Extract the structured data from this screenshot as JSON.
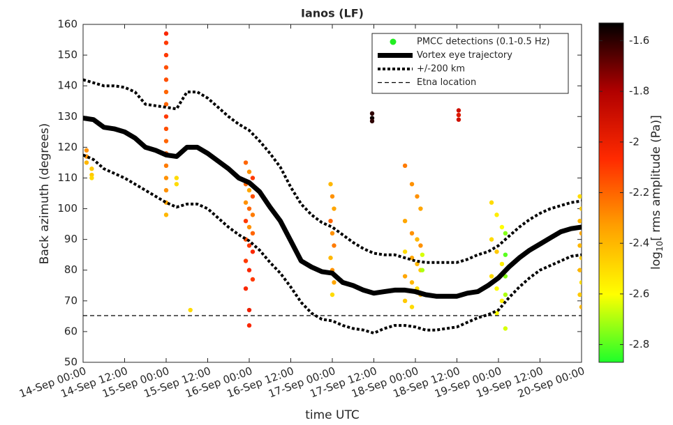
{
  "chart_data": {
    "type": "scatter-line",
    "title": "Ianos (LF)",
    "xlabel": "time UTC",
    "ylabel": "Back azimuth (degrees)",
    "colorbar_label": {
      "base": "log",
      "sub": "10",
      "rest": "[ rms amplitude (Pa)]"
    },
    "xlim": [
      "14-Sep 00:00",
      "20-Sep 00:00"
    ],
    "xticks": [
      "14-Sep 00:00",
      "14-Sep 12:00",
      "15-Sep 00:00",
      "15-Sep 12:00",
      "16-Sep 00:00",
      "16-Sep 12:00",
      "17-Sep 00:00",
      "17-Sep 12:00",
      "18-Sep 00:00",
      "18-Sep 12:00",
      "19-Sep 00:00",
      "19-Sep 12:00",
      "20-Sep 00:00"
    ],
    "ylim": [
      50,
      160
    ],
    "yticks": [
      50,
      60,
      70,
      80,
      90,
      100,
      110,
      120,
      130,
      140,
      150,
      160
    ],
    "clim": [
      -2.87,
      -1.53
    ],
    "cticks": [
      -2.8,
      -2.6,
      -2.4,
      -2.2,
      -2,
      -1.8,
      -1.6
    ],
    "colormap": [
      "#1eff2a",
      "#ffff00",
      "#ffa000",
      "#ff2a00",
      "#b00000",
      "#000000"
    ],
    "legend": "upper right",
    "x": [
      "14-Sep 00:00",
      "14-Sep 03:00",
      "14-Sep 06:00",
      "14-Sep 09:00",
      "14-Sep 12:00",
      "14-Sep 15:00",
      "14-Sep 18:00",
      "14-Sep 21:00",
      "15-Sep 00:00",
      "15-Sep 03:00",
      "15-Sep 06:00",
      "15-Sep 09:00",
      "15-Sep 12:00",
      "15-Sep 15:00",
      "15-Sep 18:00",
      "15-Sep 21:00",
      "16-Sep 00:00",
      "16-Sep 03:00",
      "16-Sep 06:00",
      "16-Sep 09:00",
      "16-Sep 12:00",
      "16-Sep 15:00",
      "16-Sep 18:00",
      "16-Sep 21:00",
      "17-Sep 00:00",
      "17-Sep 03:00",
      "17-Sep 06:00",
      "17-Sep 09:00",
      "17-Sep 12:00",
      "17-Sep 15:00",
      "17-Sep 18:00",
      "17-Sep 21:00",
      "18-Sep 00:00",
      "18-Sep 03:00",
      "18-Sep 06:00",
      "18-Sep 09:00",
      "18-Sep 12:00",
      "18-Sep 15:00",
      "18-Sep 18:00",
      "18-Sep 21:00",
      "19-Sep 00:00",
      "19-Sep 03:00",
      "19-Sep 06:00",
      "19-Sep 09:00",
      "19-Sep 12:00",
      "19-Sep 15:00",
      "19-Sep 18:00",
      "19-Sep 21:00",
      "20-Sep 00:00"
    ],
    "series": [
      {
        "name": "PMCC detections (0.1-0.5 Hz)",
        "kind": "scatter",
        "color": "#22ee22",
        "x": [
          "14-Sep 01:00",
          "14-Sep 01:00",
          "14-Sep 01:00",
          "14-Sep 02:30",
          "14-Sep 02:30",
          "14-Sep 02:30",
          "15-Sep 00:00",
          "15-Sep 00:00",
          "15-Sep 00:00",
          "15-Sep 00:00",
          "15-Sep 00:00",
          "15-Sep 00:00",
          "15-Sep 00:00",
          "15-Sep 00:00",
          "15-Sep 00:00",
          "15-Sep 00:00",
          "15-Sep 00:00",
          "15-Sep 00:00",
          "15-Sep 00:00",
          "15-Sep 00:00",
          "15-Sep 00:00",
          "15-Sep 00:00",
          "15-Sep 03:00",
          "15-Sep 03:00",
          "15-Sep 07:00",
          "15-Sep 23:00",
          "16-Sep 00:00",
          "16-Sep 01:00",
          "15-Sep 23:00",
          "16-Sep 00:00",
          "16-Sep 01:00",
          "15-Sep 23:00",
          "16-Sep 00:00",
          "16-Sep 01:00",
          "15-Sep 23:00",
          "16-Sep 00:00",
          "16-Sep 01:00",
          "15-Sep 23:00",
          "16-Sep 00:00",
          "16-Sep 01:00",
          "15-Sep 23:00",
          "16-Sep 00:00",
          "16-Sep 01:00",
          "15-Sep 23:00",
          "16-Sep 00:00",
          "16-Sep 00:00",
          "16-Sep 23:30",
          "17-Sep 00:00",
          "17-Sep 00:30",
          "16-Sep 23:30",
          "17-Sep 00:00",
          "17-Sep 00:30",
          "16-Sep 23:30",
          "17-Sep 00:00",
          "17-Sep 00:30",
          "17-Sep 00:00",
          "17-Sep 11:30",
          "17-Sep 11:30",
          "17-Sep 11:30",
          "17-Sep 21:00",
          "17-Sep 23:00",
          "18-Sep 00:30",
          "18-Sep 01:30",
          "17-Sep 21:00",
          "17-Sep 23:00",
          "18-Sep 00:30",
          "18-Sep 01:30",
          "17-Sep 21:00",
          "17-Sep 23:00",
          "18-Sep 00:30",
          "18-Sep 01:30",
          "17-Sep 21:00",
          "17-Sep 23:00",
          "18-Sep 00:30",
          "18-Sep 01:30",
          "17-Sep 21:00",
          "17-Sep 23:00",
          "18-Sep 02:00",
          "18-Sep 02:00",
          "18-Sep 12:30",
          "18-Sep 12:30",
          "18-Sep 12:30",
          "18-Sep 22:00",
          "18-Sep 23:30",
          "19-Sep 01:00",
          "18-Sep 22:00",
          "18-Sep 23:30",
          "19-Sep 01:00",
          "18-Sep 22:00",
          "18-Sep 23:30",
          "19-Sep 01:00",
          "18-Sep 23:30",
          "19-Sep 02:00",
          "19-Sep 02:00",
          "19-Sep 02:00",
          "19-Sep 02:00",
          "19-Sep 02:00",
          "19-Sep 23:30",
          "20-Sep 00:00",
          "19-Sep 23:30",
          "20-Sep 00:00",
          "19-Sep 23:30",
          "20-Sep 00:00",
          "19-Sep 23:30",
          "20-Sep 00:00",
          "19-Sep 23:30",
          "20-Sep 00:00"
        ],
        "values": [
          119,
          117,
          115,
          113,
          111,
          110,
          157,
          154,
          150,
          146,
          142,
          138,
          134,
          130,
          126,
          122,
          118,
          114,
          110,
          106,
          102,
          98,
          110,
          108,
          67,
          115,
          112,
          110,
          108,
          106,
          104,
          102,
          100,
          98,
          96,
          94,
          92,
          90,
          88,
          86,
          83,
          80,
          77,
          74,
          67,
          62,
          108,
          104,
          100,
          96,
          92,
          88,
          84,
          80,
          76,
          72,
          131,
          129.5,
          128.5,
          114,
          108,
          104,
          100,
          96,
          92,
          90,
          88,
          86,
          84,
          82,
          80,
          78,
          76,
          74,
          72,
          70,
          68,
          85,
          80,
          132,
          130.5,
          129,
          102,
          98,
          94,
          90,
          86,
          82,
          78,
          74,
          70,
          66,
          92,
          85,
          78,
          72,
          61,
          104,
          100,
          96,
          92,
          88,
          84,
          80,
          76,
          72,
          68
        ],
        "c": [
          -2.3,
          -2.3,
          -2.4,
          -2.45,
          -2.45,
          -2.5,
          -2.05,
          -2.1,
          -2.1,
          -2.15,
          -2.15,
          -2.2,
          -2.2,
          -2.1,
          -2.15,
          -2.2,
          -2.2,
          -2.25,
          -2.3,
          -2.3,
          -2.35,
          -2.4,
          -2.5,
          -2.5,
          -2.5,
          -2.2,
          -2.3,
          -2.1,
          -2.2,
          -2.35,
          -2.15,
          -2.3,
          -2.2,
          -2.25,
          -2.1,
          -2.3,
          -2.2,
          -2.15,
          -2.1,
          -2.05,
          -2.1,
          -2.05,
          -2.1,
          -2.05,
          -2.0,
          -2.05,
          -2.4,
          -2.3,
          -2.35,
          -2.2,
          -2.3,
          -2.25,
          -2.4,
          -2.3,
          -2.35,
          -2.5,
          -1.6,
          -1.55,
          -1.6,
          -2.25,
          -2.3,
          -2.3,
          -2.35,
          -2.35,
          -2.3,
          -2.4,
          -2.3,
          -2.5,
          -2.35,
          -2.4,
          -2.45,
          -2.35,
          -2.4,
          -2.5,
          -2.4,
          -2.45,
          -2.5,
          -2.65,
          -2.7,
          -1.9,
          -1.95,
          -1.9,
          -2.5,
          -2.55,
          -2.6,
          -2.5,
          -2.45,
          -2.55,
          -2.5,
          -2.6,
          -2.55,
          -2.6,
          -2.75,
          -2.8,
          -2.75,
          -2.7,
          -2.65,
          -2.5,
          -2.45,
          -2.4,
          -2.35,
          -2.4,
          -2.45,
          -2.4,
          -2.5,
          -2.45,
          -2.4
        ]
      },
      {
        "name": "Vortex eye trajectory",
        "kind": "line",
        "style": "thick",
        "color": "#000000",
        "values": [
          129.5,
          129,
          126.5,
          126,
          125,
          123,
          120,
          119,
          117.5,
          117,
          120,
          120,
          118,
          115.5,
          113,
          110,
          108.5,
          105.5,
          100.5,
          96,
          89.5,
          83,
          81,
          79.5,
          79,
          76,
          75,
          73.5,
          72.5,
          73,
          73.5,
          73.5,
          73,
          72,
          71.5,
          71.5,
          71.5,
          72.5,
          73,
          75,
          77.5,
          81,
          84,
          86.5,
          88.5,
          90.5,
          92.5,
          93.5,
          94
        ]
      },
      {
        "name": "+/-200 km",
        "kind": "line",
        "style": "dotted",
        "color": "#000000",
        "values": [
          142,
          141,
          140,
          140,
          139.5,
          138,
          134,
          133.5,
          133,
          132.5,
          138,
          138,
          136,
          133,
          130,
          127.5,
          125.5,
          122,
          118,
          113.5,
          107,
          101.5,
          98,
          95.5,
          94,
          91.5,
          89,
          87,
          85.5,
          85,
          85,
          84,
          83,
          82.5,
          82.5,
          82.5,
          82.5,
          83.5,
          85,
          86,
          88,
          91,
          94,
          96.5,
          98.5,
          100,
          101,
          102,
          102.5
        ]
      },
      {
        "kind": "line",
        "style": "dotted",
        "color": "#000000",
        "values": [
          117.5,
          116,
          113,
          111.5,
          110,
          108,
          106,
          104,
          102,
          100.5,
          101.5,
          101.5,
          100,
          97,
          94,
          91.5,
          89.5,
          86.5,
          82.5,
          79,
          74.5,
          69.5,
          66,
          64,
          63.5,
          62,
          61,
          60.5,
          59.5,
          61,
          62,
          62,
          61.5,
          60.5,
          60.5,
          61,
          61.5,
          63,
          64.5,
          65.5,
          67,
          71,
          74.5,
          77.5,
          80,
          81.5,
          83,
          84.5,
          85
        ]
      },
      {
        "name": "Etna location",
        "kind": "line",
        "style": "dashed",
        "color": "#000000",
        "x": [
          "14-Sep 00:00",
          "20-Sep 00:00"
        ],
        "values": [
          65.2,
          65.2
        ]
      }
    ]
  }
}
